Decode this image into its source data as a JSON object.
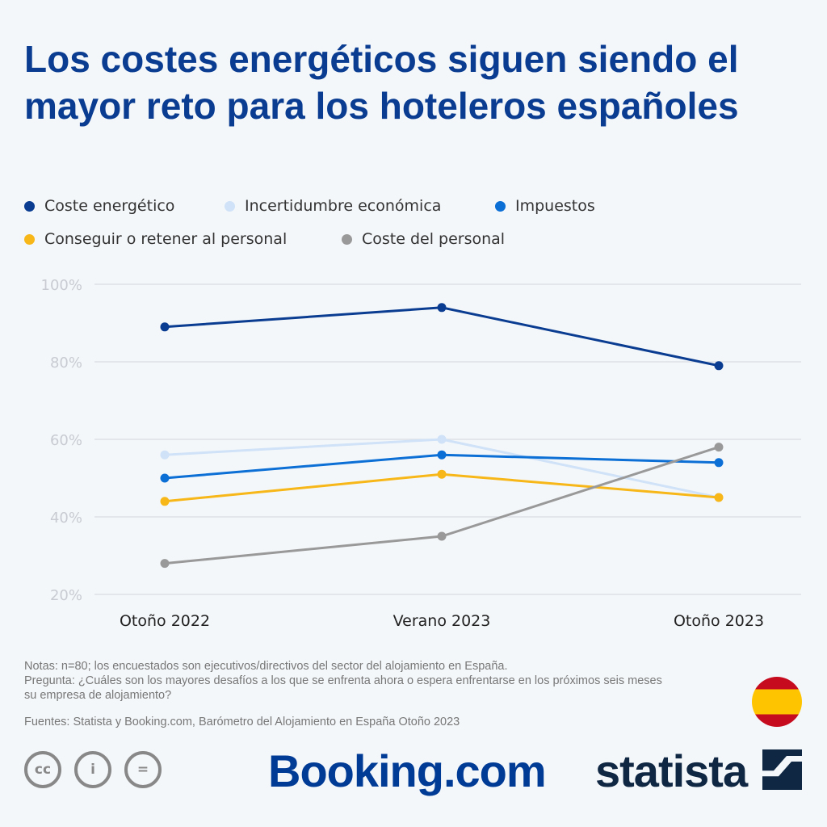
{
  "title": "Los costes energéticos siguen siendo el mayor reto para los hoteleros españoles",
  "chart_data": {
    "type": "line",
    "title": "Los costes energéticos siguen siendo el mayor reto para los hoteleros españoles",
    "categories": [
      "Otoño 2022",
      "Verano 2023",
      "Otoño 2023"
    ],
    "ylim": [
      20,
      100
    ],
    "yticks": [
      "100%",
      "80%",
      "60%",
      "40%",
      "20%"
    ],
    "ytick_values": [
      100,
      80,
      60,
      40,
      20
    ],
    "grid": true,
    "legend_position": "top",
    "series": [
      {
        "name": "Coste energético",
        "color": "#0a3d91",
        "values": [
          89,
          94,
          79
        ]
      },
      {
        "name": "Incertidumbre económica",
        "color": "#cfe2f7",
        "values": [
          56,
          60,
          45
        ]
      },
      {
        "name": "Impuestos",
        "color": "#0b6fd6",
        "values": [
          50,
          56,
          54
        ]
      },
      {
        "name": "Conseguir o retener al personal",
        "color": "#f7b718",
        "values": [
          44,
          51,
          45
        ]
      },
      {
        "name": "Coste del personal",
        "color": "#999999",
        "values": [
          28,
          35,
          58
        ]
      }
    ]
  },
  "notes": "Notas: n=80; los encuestados son ejecutivos/directivos del sector del alojamiento en España.",
  "question": "Pregunta: ¿Cuáles son los mayores desafíos a los que se enfrenta ahora o espera enfrentarse en los próximos seis meses su empresa de alojamiento?",
  "sources": "Fuentes: Statista y Booking.com, Barómetro del Alojamiento en España Otoño 2023",
  "logos": {
    "booking": "Booking.com",
    "statista": "statista",
    "license": [
      "cc",
      "by",
      "nd"
    ]
  },
  "license_labels": {
    "cc": "cc",
    "by": "i",
    "nd": "="
  }
}
